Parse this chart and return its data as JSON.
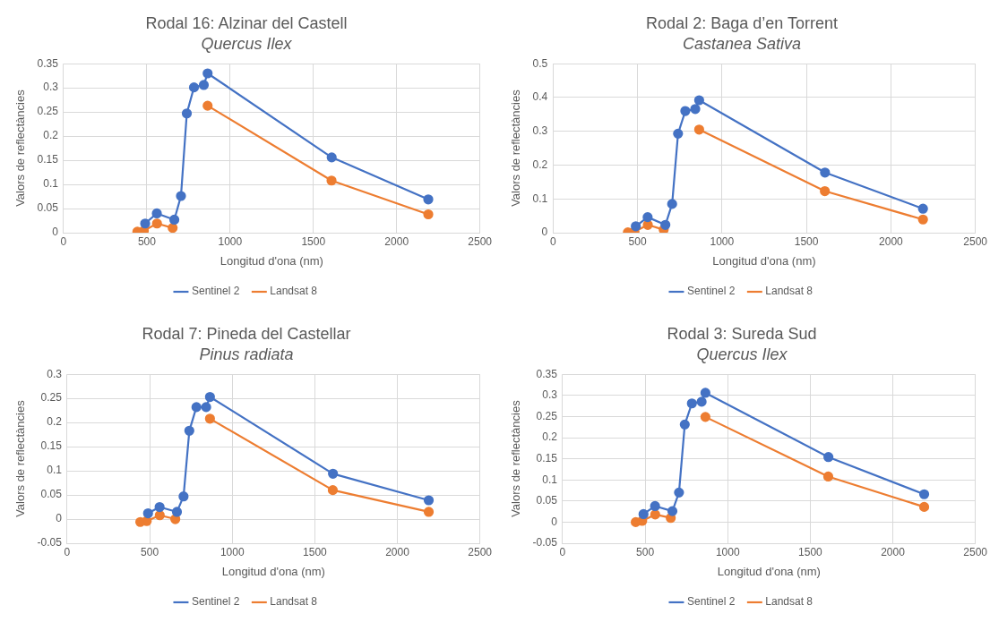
{
  "chart_data": [
    {
      "type": "line",
      "title": "Rodal 16: Alzinar del Castell",
      "subtitle": "Quercus Ilex",
      "xlabel": "Longitud d'ona (nm)",
      "ylabel": "Valors de reflectàncies",
      "xlim": [
        0,
        2500
      ],
      "xticks": [
        0,
        500,
        1000,
        1500,
        2000,
        2500
      ],
      "ylim": [
        0,
        0.35
      ],
      "yticks": [
        0,
        0.05,
        0.1,
        0.15,
        0.2,
        0.25,
        0.3,
        0.35
      ],
      "grid": true,
      "legend": "bottom",
      "marker": "circle",
      "series": [
        {
          "name": "Sentinel 2",
          "color": "#4472c4",
          "x": [
            490,
            560,
            665,
            705,
            740,
            783,
            842,
            865,
            1610,
            2190
          ],
          "values": [
            0.019,
            0.04,
            0.027,
            0.076,
            0.247,
            0.301,
            0.306,
            0.33,
            0.156,
            0.069
          ]
        },
        {
          "name": "Landsat 8",
          "color": "#ed7d31",
          "x": [
            443,
            482,
            561,
            655,
            760,
            865,
            1609,
            2190
          ],
          "values": [
            0.002,
            0.004,
            0.019,
            0.01,
            null,
            0.263,
            0.108,
            0.038
          ]
        }
      ]
    },
    {
      "type": "line",
      "title": "Rodal 2: Baga d’en Torrent",
      "subtitle": "Castanea Sativa",
      "xlabel": "Longitud d'ona (nm)",
      "ylabel": "Valors de reflectàncies",
      "xlim": [
        0,
        2500
      ],
      "xticks": [
        0,
        500,
        1000,
        1500,
        2000,
        2500
      ],
      "ylim": [
        0,
        0.5
      ],
      "yticks": [
        0,
        0.1,
        0.2,
        0.3,
        0.4,
        0.5
      ],
      "grid": true,
      "legend": "bottom",
      "marker": "circle",
      "series": [
        {
          "name": "Sentinel 2",
          "color": "#4472c4",
          "x": [
            490,
            560,
            665,
            705,
            740,
            783,
            842,
            865,
            1610,
            2190
          ],
          "values": [
            0.019,
            0.046,
            0.023,
            0.085,
            0.293,
            0.36,
            0.366,
            0.392,
            0.178,
            0.071
          ]
        },
        {
          "name": "Landsat 8",
          "color": "#ed7d31",
          "x": [
            443,
            482,
            561,
            655,
            760,
            865,
            1609,
            2190
          ],
          "values": [
            0.001,
            0.003,
            0.023,
            0.009,
            null,
            0.305,
            0.123,
            0.039
          ]
        }
      ]
    },
    {
      "type": "line",
      "title": "Rodal 7: Pineda del Castellar",
      "subtitle": "Pinus radiata",
      "xlabel": "Longitud d'ona (nm)",
      "ylabel": "Valors de reflectàncies",
      "xlim": [
        0,
        2500
      ],
      "xticks": [
        0,
        500,
        1000,
        1500,
        2000,
        2500
      ],
      "ylim": [
        -0.05,
        0.3
      ],
      "yticks": [
        -0.05,
        0,
        0.05,
        0.1,
        0.15,
        0.2,
        0.25,
        0.3
      ],
      "grid": true,
      "legend": "bottom",
      "marker": "circle",
      "series": [
        {
          "name": "Sentinel 2",
          "color": "#4472c4",
          "x": [
            490,
            560,
            665,
            705,
            740,
            783,
            842,
            865,
            1610,
            2190
          ],
          "values": [
            0.012,
            0.025,
            0.015,
            0.047,
            0.183,
            0.232,
            0.232,
            0.253,
            0.094,
            0.039
          ]
        },
        {
          "name": "Landsat 8",
          "color": "#ed7d31",
          "x": [
            443,
            482,
            561,
            655,
            760,
            865,
            1609,
            2190
          ],
          "values": [
            -0.006,
            -0.004,
            0.008,
            0.0,
            null,
            0.208,
            0.06,
            0.015
          ]
        }
      ]
    },
    {
      "type": "line",
      "title": "Rodal 3: Sureda Sud",
      "subtitle": "Quercus Ilex",
      "xlabel": "Longitud d'ona (nm)",
      "ylabel": "Valors de reflectàncies",
      "xlim": [
        0,
        2500
      ],
      "xticks": [
        0,
        500,
        1000,
        1500,
        2000,
        2500
      ],
      "ylim": [
        -0.05,
        0.35
      ],
      "yticks": [
        -0.05,
        0,
        0.05,
        0.1,
        0.15,
        0.2,
        0.25,
        0.3,
        0.35
      ],
      "grid": true,
      "legend": "bottom",
      "marker": "circle",
      "series": [
        {
          "name": "Sentinel 2",
          "color": "#4472c4",
          "x": [
            490,
            560,
            665,
            705,
            740,
            783,
            842,
            865,
            1610,
            2190
          ],
          "values": [
            0.019,
            0.038,
            0.026,
            0.07,
            0.231,
            0.281,
            0.285,
            0.306,
            0.154,
            0.066
          ]
        },
        {
          "name": "Landsat 8",
          "color": "#ed7d31",
          "x": [
            443,
            482,
            561,
            655,
            760,
            865,
            1609,
            2190
          ],
          "values": [
            0.0,
            0.003,
            0.018,
            0.01,
            null,
            0.249,
            0.108,
            0.036
          ]
        }
      ]
    }
  ]
}
